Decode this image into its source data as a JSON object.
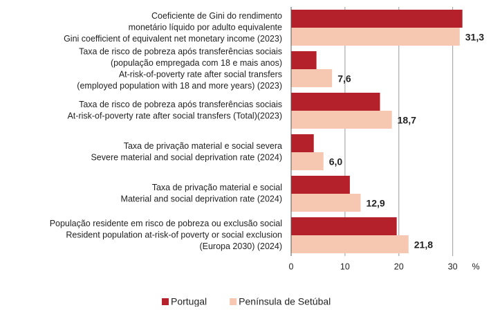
{
  "chart_data": {
    "type": "hbar",
    "categories": [
      [
        "Coeficiente de Gini do rendimento",
        "monetário líquido por adulto equivalente",
        "Gini coefficient of equivalent net monetary income (2023)"
      ],
      [
        "Taxa de risco de pobreza após transferências sociais",
        "(população empregada com 18 e mais anos)",
        "At-risk-of-poverty rate after social transfers",
        "(employed population with 18 and more years) (2023)"
      ],
      [
        "Taxa de risco de pobreza após transferências sociais",
        "At-risk-of-poverty rate after social transfers  (Total)(2023)"
      ],
      [
        "Taxa de privação material e social severa",
        "Severe material and social deprivation rate (2024)"
      ],
      [
        "Taxa de privação material e social",
        "Material and social deprivation rate (2024)"
      ],
      [
        "População residente em risco de pobreza ou exclusão social",
        "Resident population at-risk-of poverty or social exclusion",
        "(Europa 2030) (2024)"
      ]
    ],
    "series": [
      {
        "name": "Portugal",
        "color": "#b5212b",
        "values": [
          31.8,
          4.7,
          16.5,
          4.2,
          10.9,
          19.6
        ]
      },
      {
        "name": "Península de Setúbal",
        "color": "#f6c7b1",
        "values": [
          31.3,
          7.6,
          18.7,
          6.0,
          12.9,
          21.8
        ],
        "value_labels": [
          "31,3",
          "7,6",
          "18,7",
          "6,0",
          "12,9",
          "21,8"
        ]
      }
    ],
    "xlabel": "%",
    "xlim": [
      0,
      33
    ],
    "xticks": [
      0,
      10,
      20,
      30
    ],
    "grid": true,
    "legend": "bottom"
  }
}
